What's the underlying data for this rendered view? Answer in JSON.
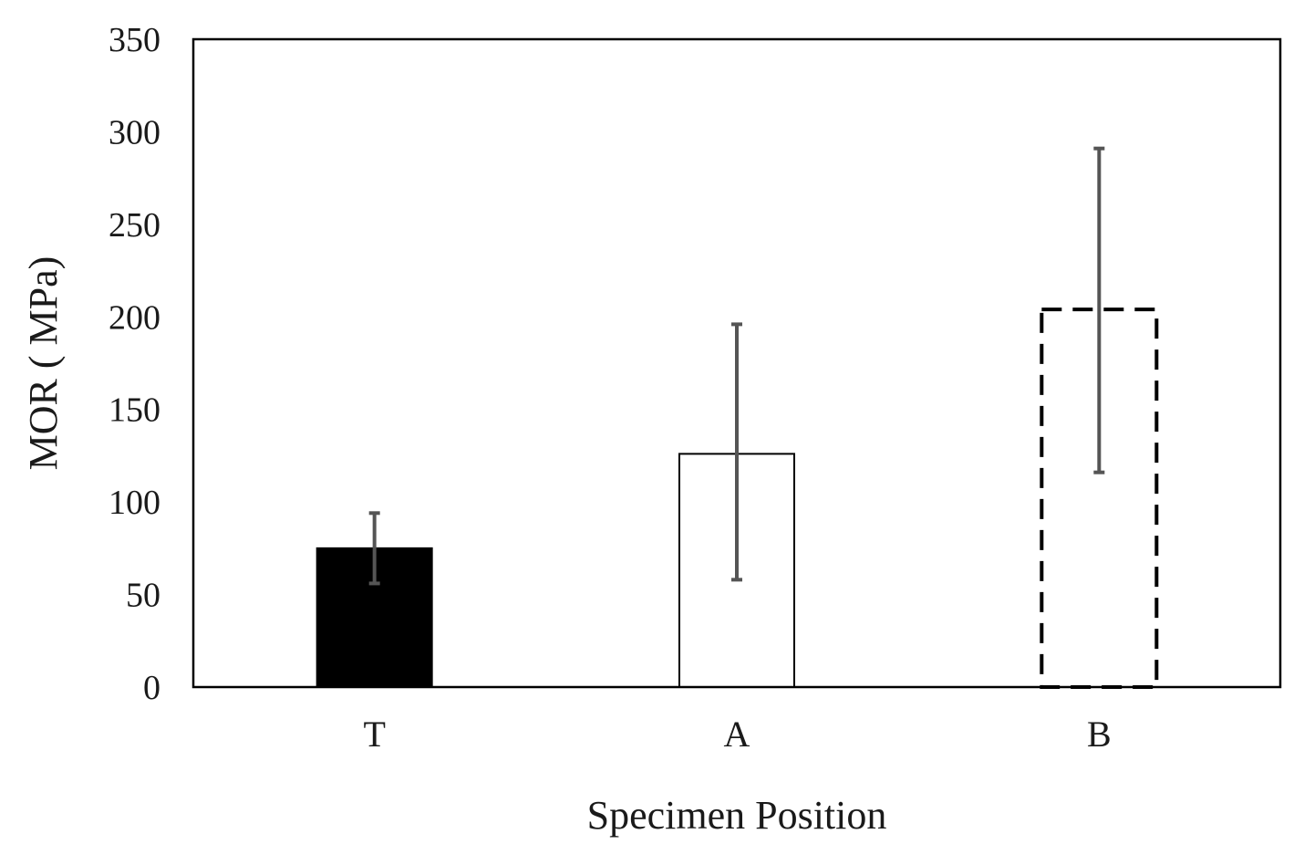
{
  "chart_data": {
    "type": "bar",
    "title": "",
    "xlabel": "Specimen Position",
    "ylabel": "MOR ( MPa)",
    "ylim": [
      0,
      350
    ],
    "yticks": [
      0,
      50,
      100,
      150,
      200,
      250,
      300,
      350
    ],
    "ytick_labels": [
      "0",
      "50",
      "100",
      "150",
      "200",
      "250",
      "300",
      "350"
    ],
    "categories": [
      "T",
      "A",
      "B"
    ],
    "values": [
      75,
      126,
      204
    ],
    "error_low": [
      56,
      58,
      116
    ],
    "error_high": [
      94,
      196,
      291
    ],
    "bar_styles": [
      "solid-black",
      "white-outline",
      "dashed-outline"
    ],
    "grid": false,
    "legend": "none",
    "colors": {
      "bar_fill_T": "#000000",
      "error_bar": "#555555",
      "axis": "#000000"
    }
  }
}
